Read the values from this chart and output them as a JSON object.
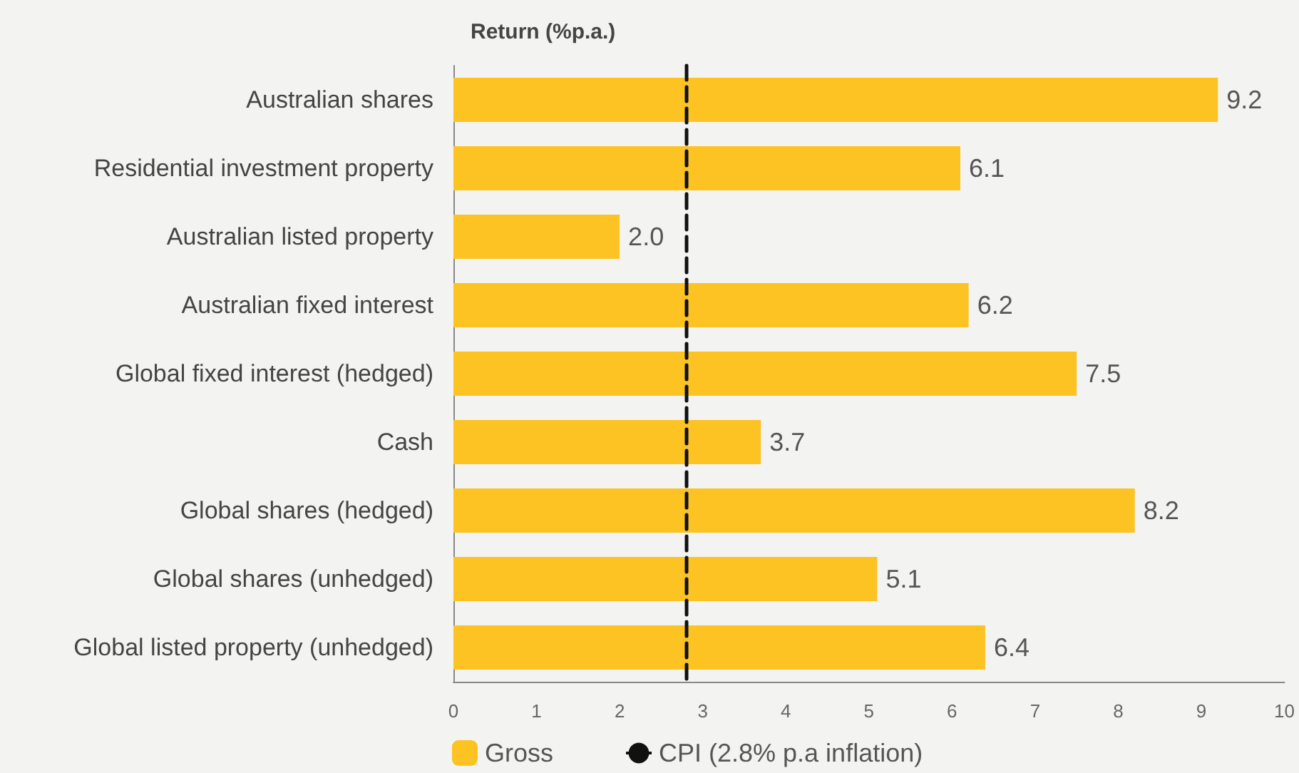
{
  "chart_data": {
    "type": "bar",
    "orientation": "horizontal",
    "title": "Return (%p.a.)",
    "categories": [
      "Australian shares",
      "Residential investment property",
      "Australian listed property",
      "Australian fixed interest",
      "Global fixed interest (hedged)",
      "Cash",
      "Global shares (hedged)",
      "Global shares (unhedged)",
      "Global listed property (unhedged)"
    ],
    "series": [
      {
        "name": "Gross",
        "color": "#fdc323",
        "values": [
          9.2,
          6.1,
          2.0,
          6.2,
          7.5,
          3.7,
          8.2,
          5.1,
          6.4
        ],
        "value_labels": [
          "9.2",
          "6.1",
          "2.0",
          "6.2",
          "7.5",
          "3.7",
          "8.2",
          "5.1",
          "6.4"
        ]
      }
    ],
    "xlim": [
      0,
      10
    ],
    "xticks": [
      0,
      1,
      2,
      3,
      4,
      5,
      6,
      7,
      8,
      9,
      10
    ],
    "ref_lines": [
      {
        "axis": "x",
        "value": 2.8,
        "label": "CPI (2.8% p.a inflation)",
        "color": "#111111",
        "line_style": "dashed"
      }
    ],
    "grid": false,
    "legend": "bottom"
  }
}
